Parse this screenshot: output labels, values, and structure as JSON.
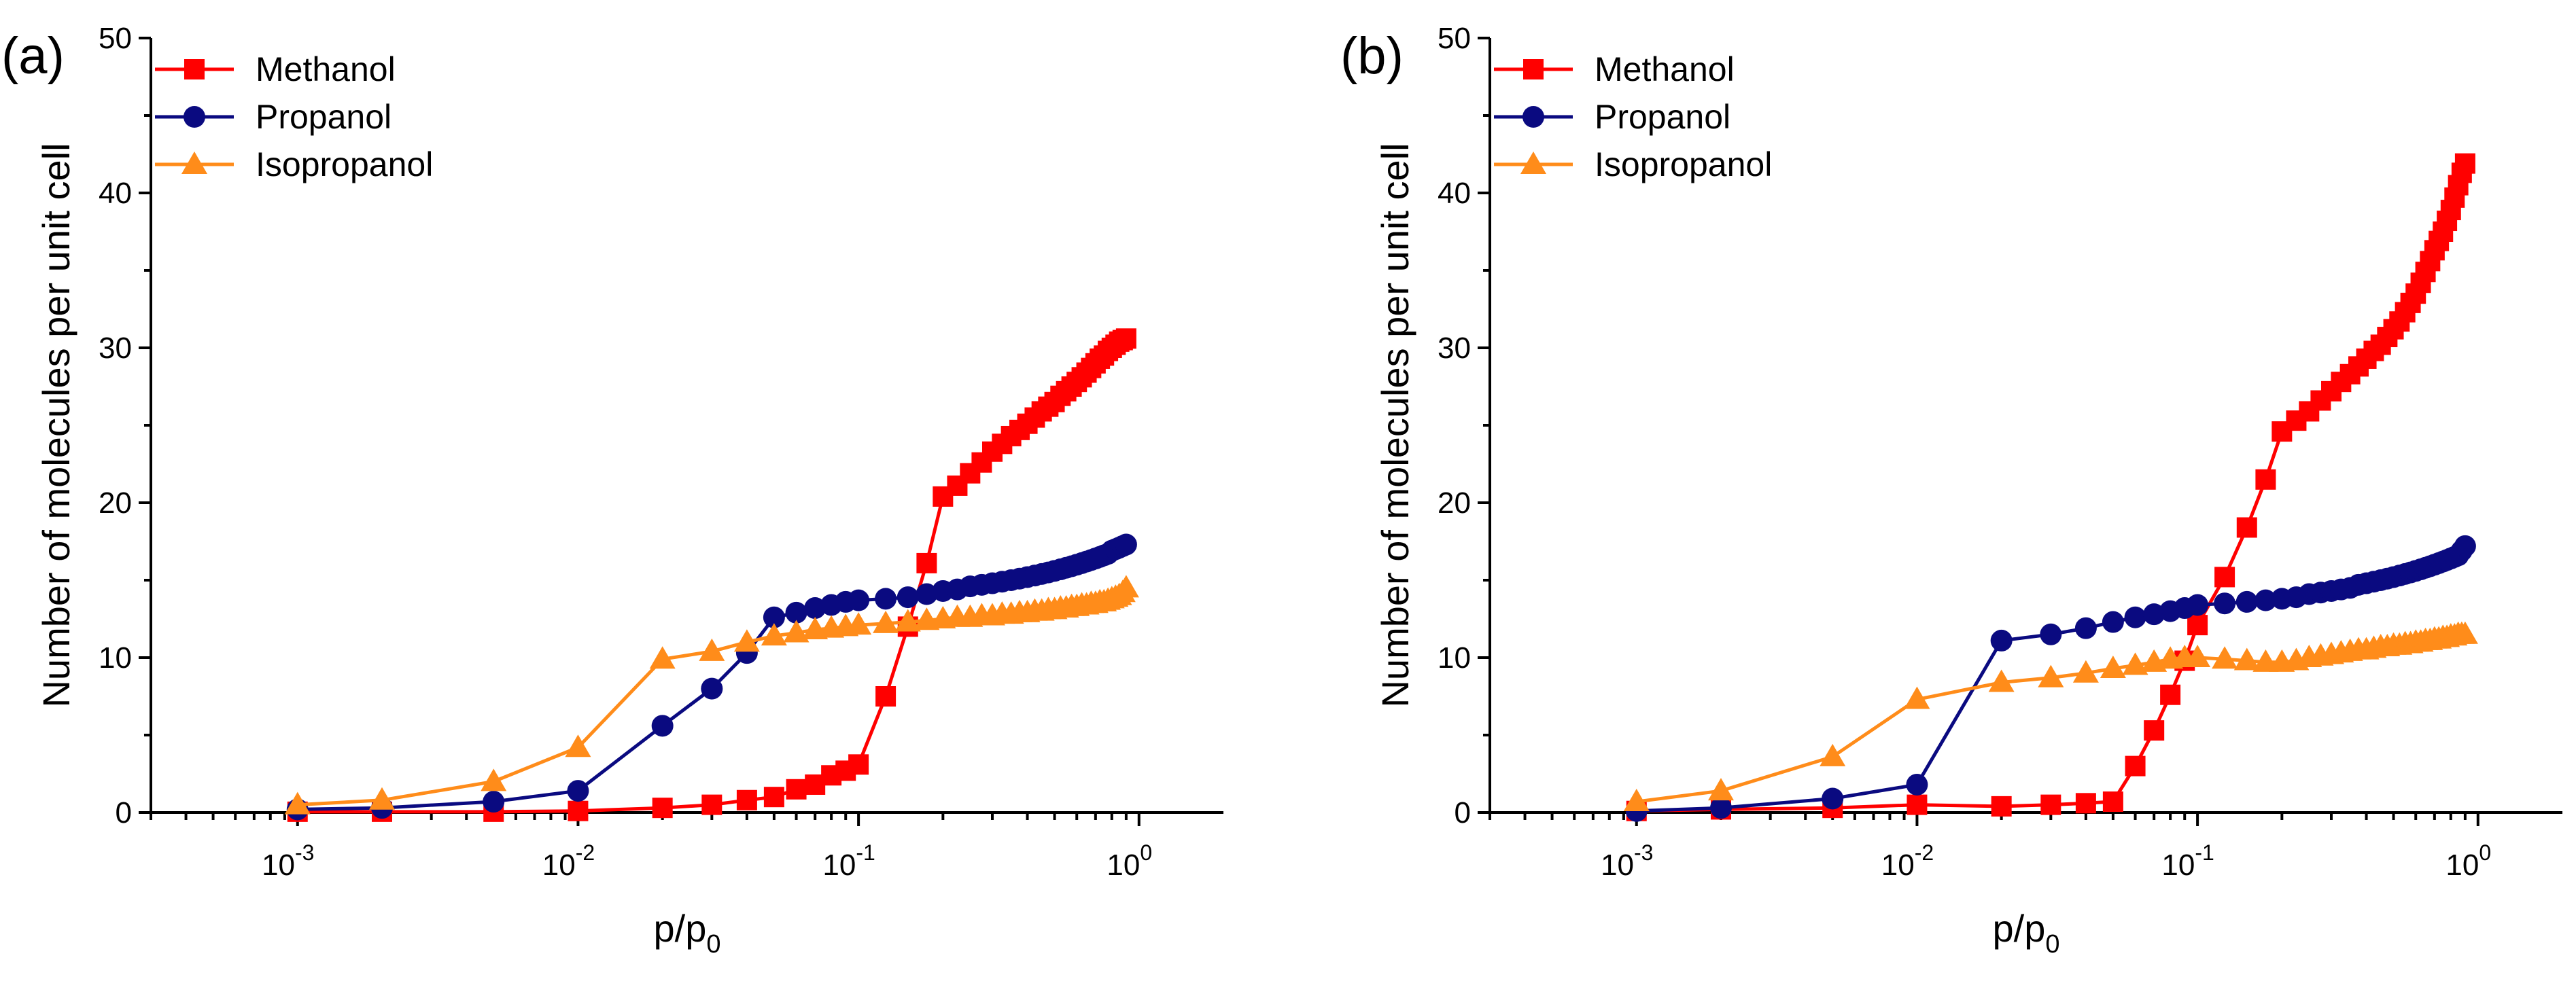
{
  "chart_data": [
    {
      "type": "line",
      "panel_label": "(a)",
      "xlabel": {
        "main": "p/p",
        "sub": "0"
      },
      "ylabel": "Number of molecules per unit cell",
      "xscale": "log",
      "xlim": [
        0.0003,
        2
      ],
      "ylim": [
        0,
        50
      ],
      "y_ticks": [
        "0",
        "10",
        "20",
        "30",
        "40",
        "50"
      ],
      "x_ticks": [
        {
          "base": "10",
          "exp": "-3"
        },
        {
          "base": "10",
          "exp": "-2"
        },
        {
          "base": "10",
          "exp": "-1"
        },
        {
          "base": "10",
          "exp": "0"
        }
      ],
      "legend_position": "top-left",
      "series": [
        {
          "name": "Methanol",
          "color": "#ff0000",
          "marker": "square",
          "x": [
            0.001,
            0.002,
            0.005,
            0.01,
            0.02,
            0.03,
            0.04,
            0.05,
            0.06,
            0.07,
            0.08,
            0.09,
            0.1,
            0.125,
            0.15,
            0.175,
            0.2,
            0.225,
            0.25,
            0.275,
            0.3,
            0.325,
            0.35,
            0.375,
            0.4,
            0.425,
            0.45,
            0.475,
            0.5,
            0.525,
            0.55,
            0.575,
            0.6,
            0.625,
            0.65,
            0.675,
            0.7,
            0.725,
            0.75,
            0.775,
            0.8,
            0.825,
            0.85,
            0.875,
            0.9
          ],
          "y": [
            0.05,
            0.05,
            0.05,
            0.1,
            0.3,
            0.5,
            0.8,
            1.0,
            1.5,
            1.8,
            2.4,
            2.7,
            3.1,
            7.5,
            12.0,
            16.1,
            20.4,
            21.1,
            21.9,
            22.6,
            23.3,
            23.8,
            24.3,
            24.7,
            25.1,
            25.5,
            25.9,
            26.2,
            26.5,
            26.9,
            27.2,
            27.5,
            27.8,
            28.1,
            28.4,
            28.7,
            29.0,
            29.3,
            29.5,
            29.8,
            30.0,
            30.2,
            30.4,
            30.5,
            30.6
          ]
        },
        {
          "name": "Propanol",
          "color": "#0a0a80",
          "marker": "circle",
          "x": [
            0.001,
            0.002,
            0.005,
            0.01,
            0.02,
            0.03,
            0.04,
            0.05,
            0.06,
            0.07,
            0.08,
            0.09,
            0.1,
            0.125,
            0.15,
            0.175,
            0.2,
            0.225,
            0.25,
            0.275,
            0.3,
            0.325,
            0.35,
            0.375,
            0.4,
            0.425,
            0.45,
            0.475,
            0.5,
            0.525,
            0.55,
            0.575,
            0.6,
            0.625,
            0.65,
            0.675,
            0.7,
            0.725,
            0.75,
            0.775,
            0.8,
            0.825,
            0.85,
            0.875,
            0.9
          ],
          "y": [
            0.2,
            0.3,
            0.7,
            1.4,
            5.6,
            8.0,
            10.3,
            12.6,
            12.9,
            13.2,
            13.4,
            13.6,
            13.7,
            13.8,
            13.9,
            14.1,
            14.3,
            14.4,
            14.6,
            14.7,
            14.8,
            14.9,
            15.0,
            15.1,
            15.2,
            15.3,
            15.4,
            15.5,
            15.6,
            15.7,
            15.8,
            15.9,
            16.0,
            16.1,
            16.2,
            16.3,
            16.4,
            16.5,
            16.6,
            16.7,
            16.9,
            17.0,
            17.1,
            17.2,
            17.3
          ]
        },
        {
          "name": "Isopropanol",
          "color": "#ff8c1a",
          "marker": "triangle",
          "x": [
            0.001,
            0.002,
            0.005,
            0.01,
            0.02,
            0.03,
            0.04,
            0.05,
            0.06,
            0.07,
            0.08,
            0.09,
            0.1,
            0.125,
            0.15,
            0.175,
            0.2,
            0.225,
            0.25,
            0.275,
            0.3,
            0.325,
            0.35,
            0.375,
            0.4,
            0.425,
            0.45,
            0.475,
            0.5,
            0.525,
            0.55,
            0.575,
            0.6,
            0.625,
            0.65,
            0.675,
            0.7,
            0.725,
            0.75,
            0.775,
            0.8,
            0.825,
            0.85,
            0.875,
            0.9
          ],
          "y": [
            0.5,
            0.8,
            2.0,
            4.2,
            9.9,
            10.4,
            11.0,
            11.4,
            11.6,
            11.8,
            11.9,
            12.0,
            12.1,
            12.2,
            12.3,
            12.4,
            12.5,
            12.6,
            12.6,
            12.7,
            12.7,
            12.8,
            12.8,
            12.9,
            12.9,
            13.0,
            13.0,
            13.1,
            13.1,
            13.2,
            13.2,
            13.3,
            13.3,
            13.4,
            13.4,
            13.5,
            13.5,
            13.6,
            13.6,
            13.7,
            13.8,
            13.9,
            14.0,
            14.2,
            14.5
          ]
        }
      ]
    },
    {
      "type": "line",
      "panel_label": "(b)",
      "xlabel": {
        "main": "p/p",
        "sub": "0"
      },
      "ylabel": "Number of molecules per unit cell",
      "xscale": "log",
      "xlim": [
        0.0003,
        2
      ],
      "ylim": [
        0,
        50
      ],
      "y_ticks": [
        "0",
        "10",
        "20",
        "30",
        "40",
        "50"
      ],
      "x_ticks": [
        {
          "base": "10",
          "exp": "-3"
        },
        {
          "base": "10",
          "exp": "-2"
        },
        {
          "base": "10",
          "exp": "-1"
        },
        {
          "base": "10",
          "exp": "0"
        }
      ],
      "legend_position": "top-left",
      "series": [
        {
          "name": "Methanol",
          "color": "#ff0000",
          "marker": "square",
          "x": [
            0.001,
            0.002,
            0.005,
            0.01,
            0.02,
            0.03,
            0.04,
            0.05,
            0.06,
            0.07,
            0.08,
            0.09,
            0.1,
            0.125,
            0.15,
            0.175,
            0.2,
            0.225,
            0.25,
            0.275,
            0.3,
            0.325,
            0.35,
            0.375,
            0.4,
            0.425,
            0.45,
            0.475,
            0.5,
            0.525,
            0.55,
            0.575,
            0.6,
            0.625,
            0.65,
            0.675,
            0.7,
            0.725,
            0.75,
            0.775,
            0.8,
            0.825,
            0.85,
            0.875,
            0.9
          ],
          "y": [
            0.1,
            0.2,
            0.3,
            0.5,
            0.4,
            0.5,
            0.6,
            0.7,
            3.0,
            5.3,
            7.6,
            9.8,
            12.1,
            15.2,
            18.4,
            21.5,
            24.6,
            25.3,
            25.9,
            26.6,
            27.2,
            27.8,
            28.3,
            28.8,
            29.3,
            29.8,
            30.2,
            30.7,
            31.2,
            31.7,
            32.3,
            32.9,
            33.5,
            34.2,
            34.9,
            35.6,
            36.3,
            36.9,
            37.5,
            38.2,
            38.9,
            39.7,
            40.5,
            41.3,
            41.9
          ]
        },
        {
          "name": "Propanol",
          "color": "#0a0a80",
          "marker": "circle",
          "x": [
            0.001,
            0.002,
            0.005,
            0.01,
            0.02,
            0.03,
            0.04,
            0.05,
            0.06,
            0.07,
            0.08,
            0.09,
            0.1,
            0.125,
            0.15,
            0.175,
            0.2,
            0.225,
            0.25,
            0.275,
            0.3,
            0.325,
            0.35,
            0.375,
            0.4,
            0.425,
            0.45,
            0.475,
            0.5,
            0.525,
            0.55,
            0.575,
            0.6,
            0.625,
            0.65,
            0.675,
            0.7,
            0.725,
            0.75,
            0.775,
            0.8,
            0.825,
            0.85,
            0.875,
            0.9
          ],
          "y": [
            0.1,
            0.3,
            0.9,
            1.8,
            11.1,
            11.5,
            11.9,
            12.3,
            12.6,
            12.8,
            13.0,
            13.2,
            13.4,
            13.5,
            13.6,
            13.7,
            13.8,
            13.9,
            14.1,
            14.2,
            14.3,
            14.4,
            14.5,
            14.7,
            14.8,
            14.9,
            15.0,
            15.1,
            15.2,
            15.3,
            15.4,
            15.5,
            15.6,
            15.7,
            15.8,
            15.9,
            16.0,
            16.1,
            16.2,
            16.3,
            16.4,
            16.5,
            16.6,
            16.9,
            17.2
          ]
        },
        {
          "name": "Isopropanol",
          "color": "#ff8c1a",
          "marker": "triangle",
          "x": [
            0.001,
            0.002,
            0.005,
            0.01,
            0.02,
            0.03,
            0.04,
            0.05,
            0.06,
            0.07,
            0.08,
            0.09,
            0.1,
            0.125,
            0.15,
            0.175,
            0.2,
            0.225,
            0.25,
            0.275,
            0.3,
            0.325,
            0.35,
            0.375,
            0.4,
            0.425,
            0.45,
            0.475,
            0.5,
            0.525,
            0.55,
            0.575,
            0.6,
            0.625,
            0.65,
            0.675,
            0.7,
            0.725,
            0.75,
            0.775,
            0.8,
            0.825,
            0.85,
            0.875,
            0.9
          ],
          "y": [
            0.7,
            1.4,
            3.6,
            7.3,
            8.4,
            8.7,
            9.0,
            9.3,
            9.5,
            9.7,
            9.9,
            10.0,
            10.0,
            9.9,
            9.8,
            9.7,
            9.7,
            9.8,
            10.0,
            10.1,
            10.2,
            10.3,
            10.4,
            10.5,
            10.5,
            10.6,
            10.7,
            10.7,
            10.8,
            10.8,
            10.9,
            10.9,
            11.0,
            11.0,
            11.1,
            11.1,
            11.2,
            11.2,
            11.3,
            11.3,
            11.4,
            11.4,
            11.5,
            11.5,
            11.5
          ]
        }
      ]
    }
  ]
}
